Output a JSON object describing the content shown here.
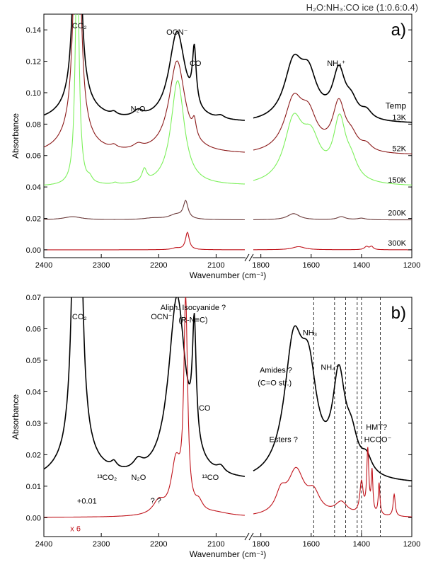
{
  "figure_title": "H₂O:NH₃:CO ice (1:0.6:0.4)",
  "colors": {
    "black": "#000000",
    "brown": "#8b1a1a",
    "light_green": "#7cf05a",
    "mauve": "#6b3a3a",
    "red": "#c0141c",
    "dashed": "#000000"
  },
  "chart_data": [
    {
      "type": "line",
      "panel_label": "a)",
      "xlabel": "Wavenumber (cm⁻¹)",
      "ylabel": "Absorbance",
      "x_axis": "reversed, broken between 1850 and 1830",
      "xlim_left_segment": [
        2400,
        2050
      ],
      "xlim_right_segment": [
        1830,
        1200
      ],
      "ylim": [
        -0.005,
        0.15
      ],
      "xticks_left": [
        2400,
        2300,
        2200,
        2100
      ],
      "xticks_right": [
        1800,
        1600,
        1400,
        1200
      ],
      "yticks": [
        0.0,
        0.02,
        0.04,
        0.06,
        0.08,
        0.1,
        0.12,
        0.14
      ],
      "grid": false,
      "legend_title": "Temp",
      "annotations": [
        {
          "text": "CO₂",
          "x": 2338,
          "y": 0.141
        },
        {
          "text": "OCN⁻",
          "x": 2168,
          "y": 0.137
        },
        {
          "text": "CO",
          "x": 2136,
          "y": 0.117
        },
        {
          "text": "N₂O",
          "x": 2236,
          "y": 0.088
        },
        {
          "text": "NH₄⁺",
          "x": 1500,
          "y": 0.117
        }
      ],
      "series": [
        {
          "name": "13K",
          "color": "black",
          "baseline": 0.08,
          "peaks": [
            [
              2342,
              0.2,
              6
            ],
            [
              2340,
              0.01,
              40
            ],
            [
              2278,
              0.002,
              6
            ],
            [
              2236,
              0.004,
              10
            ],
            [
              2168,
              0.057,
              17
            ],
            [
              2138,
              0.036,
              4
            ],
            [
              2092,
              0.002,
              8
            ],
            [
              1670,
              0.035,
              45
            ],
            [
              1610,
              0.025,
              40
            ],
            [
              1490,
              0.03,
              30
            ],
            [
              1440,
              0.01,
              30
            ],
            [
              1380,
              0.005,
              25
            ]
          ]
        },
        {
          "name": "52K",
          "color": "brown",
          "baseline": 0.06,
          "peaks": [
            [
              2342,
              0.2,
              6
            ],
            [
              2345,
              0.012,
              30
            ],
            [
              2278,
              0.002,
              6
            ],
            [
              2236,
              0.003,
              10
            ],
            [
              2168,
              0.059,
              17
            ],
            [
              2138,
              0.01,
              4
            ],
            [
              1670,
              0.032,
              45
            ],
            [
              1610,
              0.02,
              40
            ],
            [
              1490,
              0.03,
              30
            ],
            [
              1440,
              0.008,
              30
            ],
            [
              1380,
              0.004,
              25
            ]
          ]
        },
        {
          "name": "150K",
          "color": "light_green",
          "baseline": 0.04,
          "peaks": [
            [
              2342,
              0.15,
              4
            ],
            [
              2320,
              0.003,
              5
            ],
            [
              2276,
              0.001,
              5
            ],
            [
              2225,
              0.008,
              5
            ],
            [
              2167,
              0.067,
              14
            ],
            [
              1670,
              0.038,
              45
            ],
            [
              1600,
              0.025,
              45
            ],
            [
              1487,
              0.038,
              30
            ],
            [
              1440,
              0.01,
              30
            ]
          ]
        },
        {
          "name": "200K",
          "color": "mauve",
          "baseline": 0.019,
          "peaks": [
            [
              2350,
              0.002,
              20
            ],
            [
              2210,
              0.001,
              20
            ],
            [
              2153,
              0.011,
              5
            ],
            [
              2170,
              0.003,
              15
            ],
            [
              1670,
              0.004,
              30
            ],
            [
              1480,
              0.002,
              20
            ],
            [
              1400,
              0.001,
              20
            ]
          ]
        },
        {
          "name": "300K",
          "color": "red",
          "baseline": 0.0,
          "peaks": [
            [
              2150,
              0.011,
              4
            ],
            [
              2170,
              0.001,
              8
            ],
            [
              1650,
              0.002,
              30
            ],
            [
              1380,
              0.002,
              10
            ],
            [
              1360,
              0.002,
              8
            ]
          ]
        }
      ]
    },
    {
      "type": "line",
      "panel_label": "b)",
      "xlabel": "Wavenumber (cm⁻¹)",
      "ylabel": "Absorbance",
      "x_axis": "reversed, broken between 1850 and 1830",
      "xlim_left_segment": [
        2400,
        2050
      ],
      "xlim_right_segment": [
        1830,
        1200
      ],
      "ylim": [
        -0.006,
        0.07
      ],
      "xticks_left": [
        2400,
        2300,
        2200,
        2100
      ],
      "xticks_right": [
        1800,
        1600,
        1400,
        1200
      ],
      "yticks": [
        0.0,
        0.01,
        0.02,
        0.03,
        0.04,
        0.05,
        0.06,
        0.07
      ],
      "grid": false,
      "dashed_lines_x": [
        1590,
        1507,
        1463,
        1417,
        1400,
        1325
      ],
      "annotations": [
        {
          "text": "CO₂",
          "x": 2338,
          "y": 0.063
        },
        {
          "text": "OCN⁻",
          "x": 2195,
          "y": 0.063
        },
        {
          "text": "Aliph. Isocyanide ?",
          "x": 2140,
          "y": 0.066
        },
        {
          "text": "(R-N≡C)",
          "x": 2140,
          "y": 0.062
        },
        {
          "text": "CO",
          "x": 2120,
          "y": 0.034
        },
        {
          "text": "NH₃",
          "x": 1605,
          "y": 0.058
        },
        {
          "text": "Amides ?",
          "x": 1740,
          "y": 0.046
        },
        {
          "text": "(C=O str.)",
          "x": 1745,
          "y": 0.042
        },
        {
          "text": "NH₄⁺",
          "x": 1525,
          "y": 0.047
        },
        {
          "text": "Esters ?",
          "x": 1710,
          "y": 0.024
        },
        {
          "text": "HMT?",
          "x": 1340,
          "y": 0.028
        },
        {
          "text": "HCOO⁻",
          "x": 1335,
          "y": 0.024
        },
        {
          "text": "¹³CO₂",
          "x": 2290,
          "y": 0.012
        },
        {
          "text": "N₂O",
          "x": 2235,
          "y": 0.012
        },
        {
          "text": "¹³CO",
          "x": 2110,
          "y": 0.012
        },
        {
          "text": "+0.01",
          "x": 2325,
          "y": 0.0045
        },
        {
          "text": "? ?",
          "x": 2205,
          "y": 0.0046
        },
        {
          "text": "x 6",
          "x": 2345,
          "y": -0.0043
        }
      ],
      "series": [
        {
          "name": "13K",
          "color": "black",
          "baseline": 0.0105,
          "peaks": [
            [
              2342,
              0.2,
              6
            ],
            [
              2340,
              0.006,
              45
            ],
            [
              2278,
              0.002,
              6
            ],
            [
              2236,
              0.003,
              10
            ],
            [
              2168,
              0.058,
              18
            ],
            [
              2138,
              0.038,
              4
            ],
            [
              2092,
              0.002,
              8
            ],
            [
              1670,
              0.04,
              45
            ],
            [
              1610,
              0.028,
              40
            ],
            [
              1490,
              0.03,
              30
            ],
            [
              1440,
              0.01,
              30
            ],
            [
              1380,
              0.005,
              25
            ]
          ]
        },
        {
          "name": "300K x 6",
          "color": "red",
          "baseline": 0.0,
          "peaks": [
            [
              2200,
              0.004,
              12
            ],
            [
              2170,
              0.016,
              10
            ],
            [
              2153,
              0.066,
              4
            ],
            [
              2130,
              0.003,
              8
            ],
            [
              2100,
              0.001,
              30
            ],
            [
              1720,
              0.006,
              25
            ],
            [
              1660,
              0.014,
              40
            ],
            [
              1590,
              0.006,
              30
            ],
            [
              1480,
              0.004,
              30
            ],
            [
              1400,
              0.01,
              8
            ],
            [
              1375,
              0.02,
              5
            ],
            [
              1358,
              0.013,
              4
            ],
            [
              1330,
              0.01,
              4
            ],
            [
              1270,
              0.007,
              5
            ]
          ]
        }
      ]
    }
  ]
}
